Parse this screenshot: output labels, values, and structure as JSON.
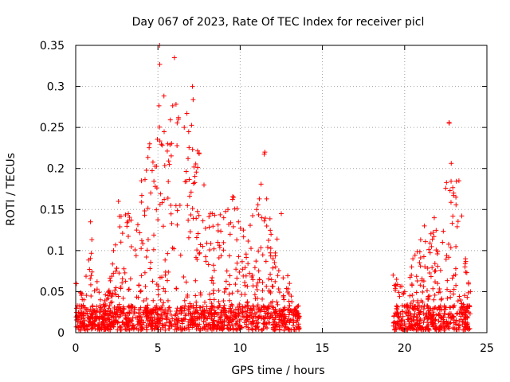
{
  "chart_data": {
    "type": "scatter",
    "title": "Day 067 of 2023, Rate Of TEC Index for receiver picl",
    "xlabel": "GPS time / hours",
    "ylabel": "ROTI / TECUs",
    "xlim": [
      0,
      25
    ],
    "ylim": [
      0,
      0.35
    ],
    "xticks": [
      "0",
      "5",
      "10",
      "15",
      "20",
      "25"
    ],
    "yticks": [
      "0",
      "0.05",
      "0.1",
      "0.15",
      "0.2",
      "0.25",
      "0.3",
      "0.35"
    ],
    "grid": true,
    "marker": "+",
    "color": "#ff0000",
    "series": [
      {
        "name": "ROTI",
        "segments": [
          {
            "x_start": 0.0,
            "x_end": 13.6
          },
          {
            "x_start": 19.3,
            "x_end": 24.0
          }
        ],
        "envelope": [
          {
            "t": 0.0,
            "max": 0.06
          },
          {
            "t": 0.5,
            "max": 0.04
          },
          {
            "t": 0.9,
            "max": 0.135
          },
          {
            "t": 1.5,
            "max": 0.04
          },
          {
            "t": 2.0,
            "max": 0.05
          },
          {
            "t": 2.3,
            "max": 0.1
          },
          {
            "t": 2.6,
            "max": 0.16
          },
          {
            "t": 3.2,
            "max": 0.145
          },
          {
            "t": 3.7,
            "max": 0.125
          },
          {
            "t": 4.0,
            "max": 0.185
          },
          {
            "t": 4.5,
            "max": 0.23
          },
          {
            "t": 5.1,
            "max": 0.35
          },
          {
            "t": 5.6,
            "max": 0.23
          },
          {
            "t": 6.0,
            "max": 0.335
          },
          {
            "t": 6.6,
            "max": 0.25
          },
          {
            "t": 7.1,
            "max": 0.3
          },
          {
            "t": 7.8,
            "max": 0.18
          },
          {
            "t": 8.3,
            "max": 0.145
          },
          {
            "t": 9.0,
            "max": 0.14
          },
          {
            "t": 9.6,
            "max": 0.165
          },
          {
            "t": 10.2,
            "max": 0.125
          },
          {
            "t": 11.0,
            "max": 0.15
          },
          {
            "t": 11.5,
            "max": 0.22
          },
          {
            "t": 12.0,
            "max": 0.09
          },
          {
            "t": 12.5,
            "max": 0.145
          },
          {
            "t": 13.0,
            "max": 0.06
          },
          {
            "t": 13.6,
            "max": 0.02
          },
          {
            "t": 19.3,
            "max": 0.07
          },
          {
            "t": 20.0,
            "max": 0.05
          },
          {
            "t": 20.5,
            "max": 0.09
          },
          {
            "t": 21.2,
            "max": 0.13
          },
          {
            "t": 21.8,
            "max": 0.14
          },
          {
            "t": 22.3,
            "max": 0.11
          },
          {
            "t": 22.7,
            "max": 0.256
          },
          {
            "t": 23.3,
            "max": 0.185
          },
          {
            "t": 23.7,
            "max": 0.09
          },
          {
            "t": 24.0,
            "max": 0.05
          }
        ]
      }
    ]
  }
}
